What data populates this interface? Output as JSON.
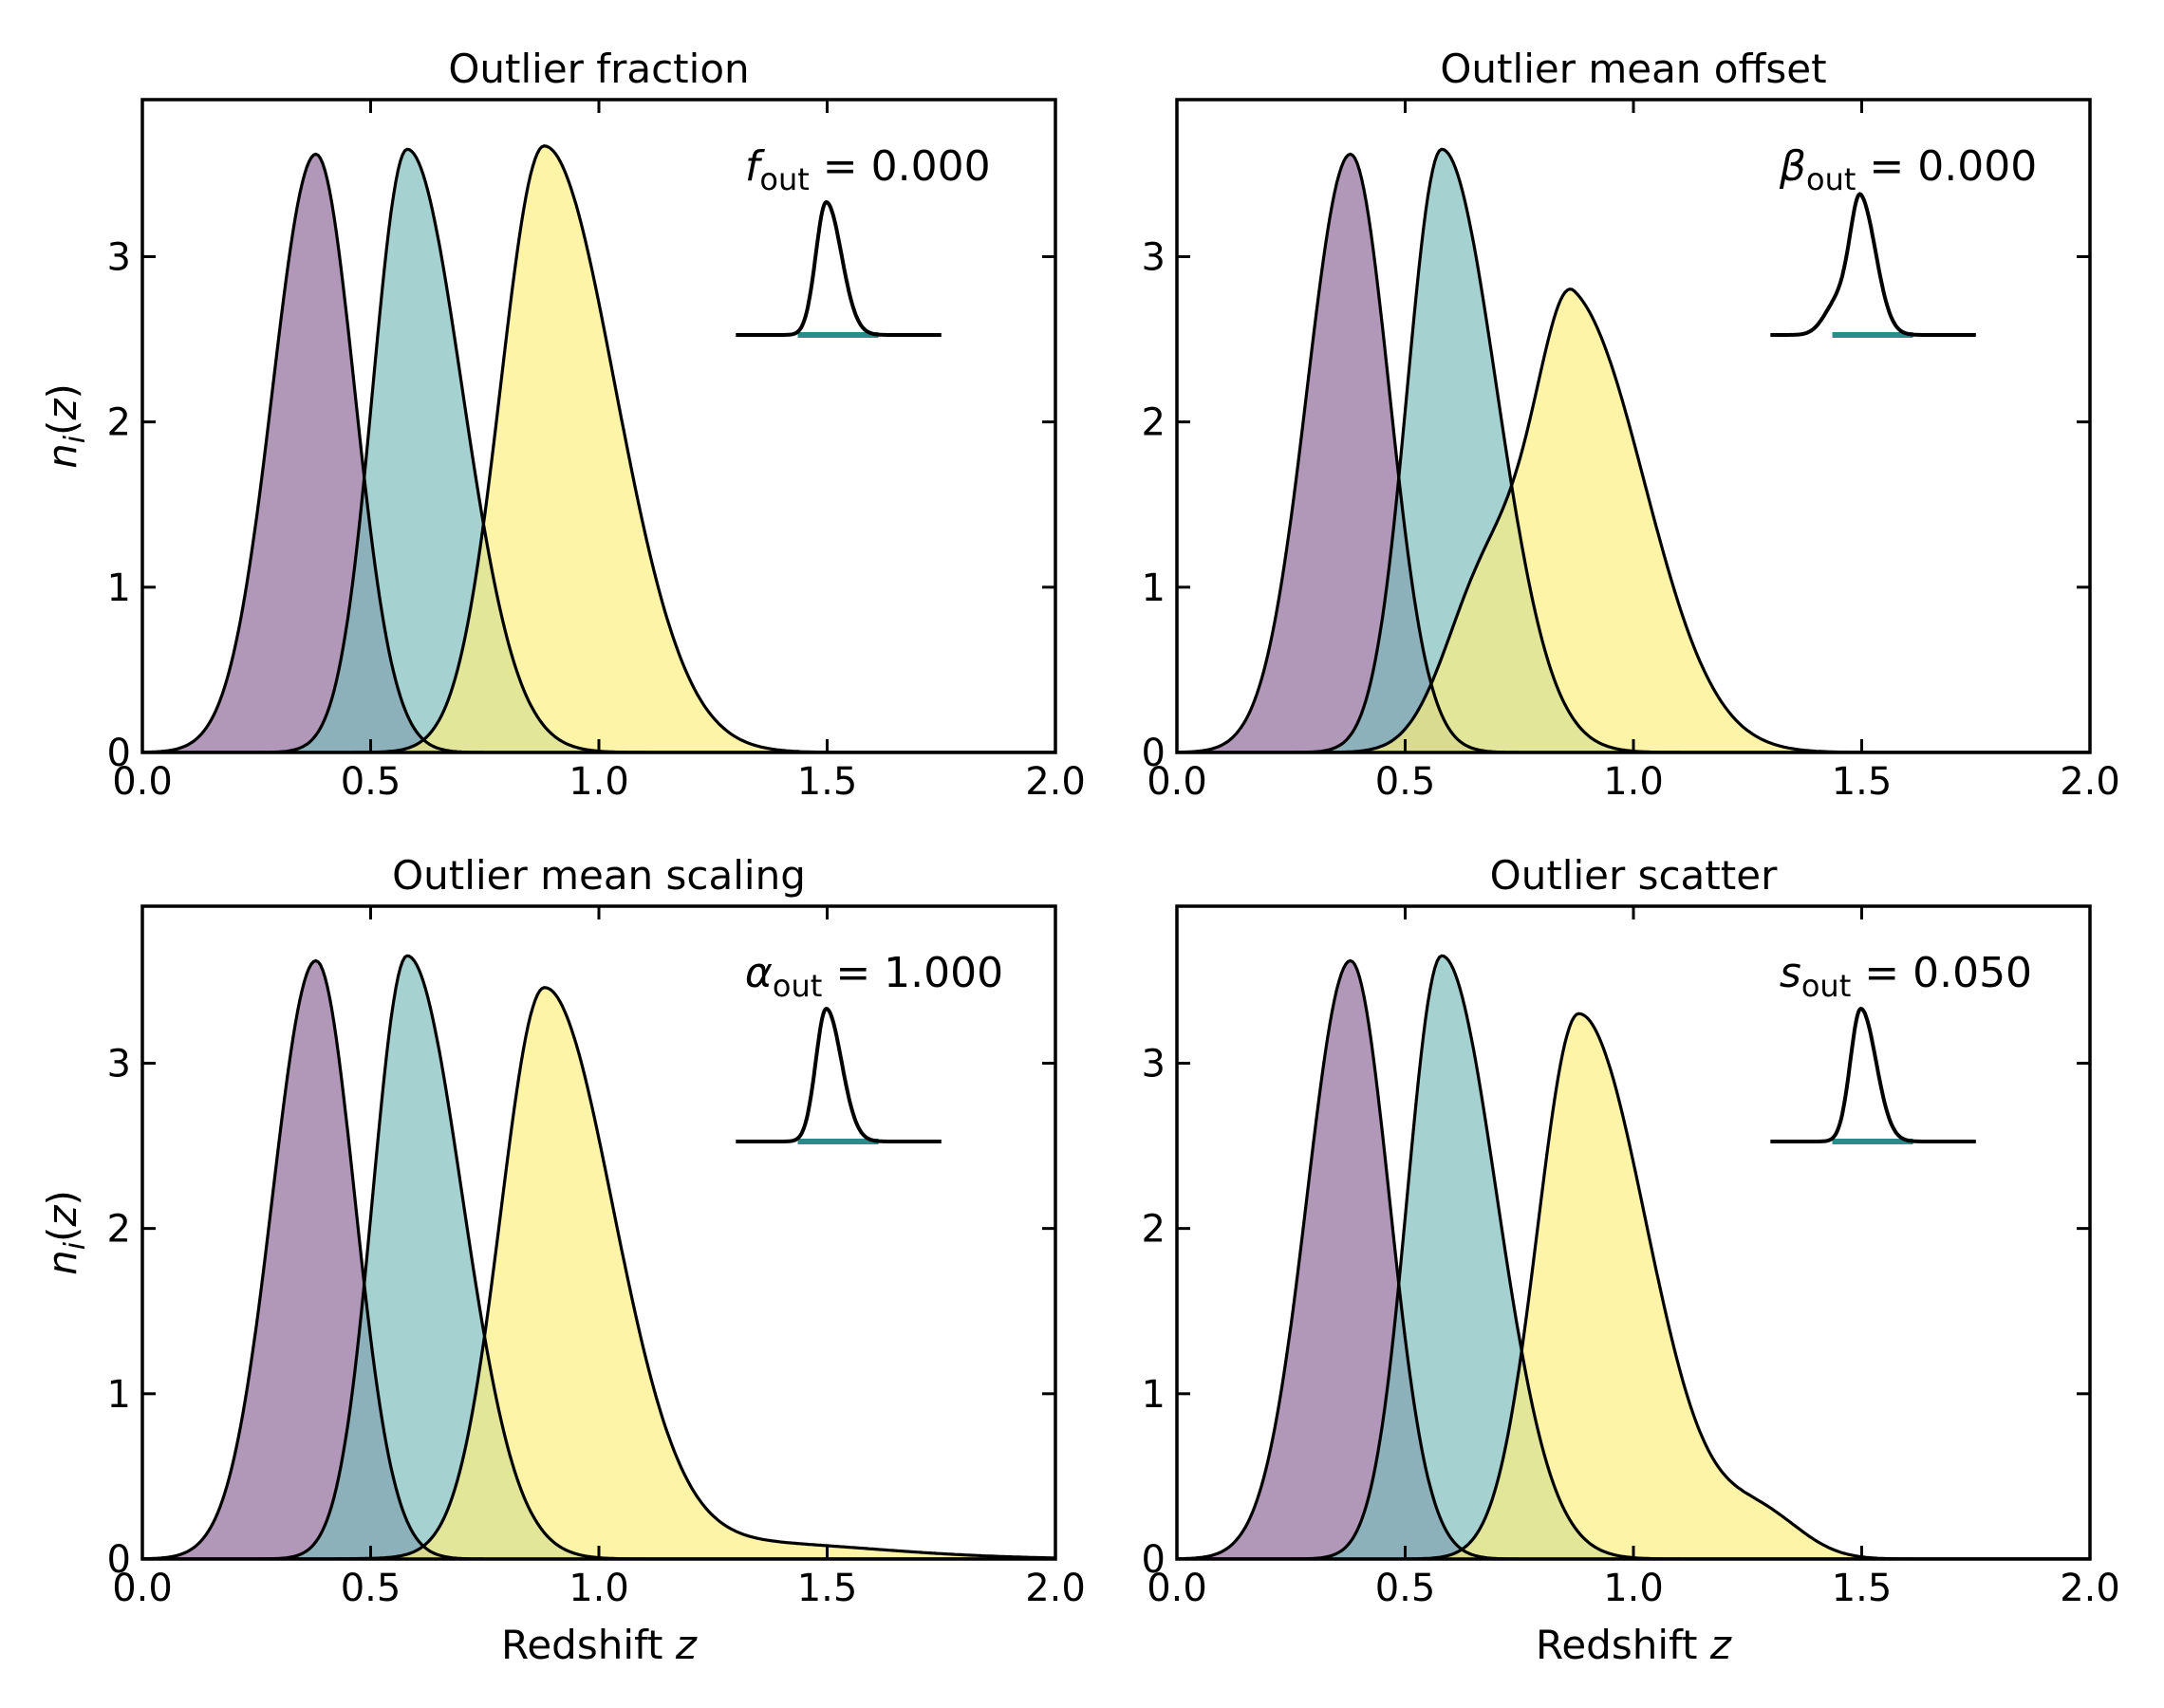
{
  "colors": {
    "purple": "#8e6796",
    "teal": "#7bbdbb",
    "yellow": "#fdef7e",
    "outline": "#000000",
    "inset_base": "#2a8c8a"
  },
  "chart_data": [
    {
      "type": "area",
      "title": "Outlier fraction",
      "xlabel": "",
      "ylabel": "n_i(z)",
      "xlim": [
        0,
        2
      ],
      "ylim": [
        0,
        3.95
      ],
      "xticks": [
        "0.0",
        "0.5",
        "1.0",
        "1.5",
        "2.0"
      ],
      "yticks": [
        "0",
        "1",
        "2",
        "3"
      ],
      "annotation": {
        "symbol": "f",
        "sub": "out",
        "text": " = 0.000"
      },
      "inset_peak_x": 1.5,
      "inset_tail": false,
      "series": [
        {
          "color": "purple",
          "peak": 3.62,
          "mu": 0.38,
          "sl": 0.095,
          "sr": 0.085,
          "outlier": 0,
          "om": 0,
          "os": 0.1
        },
        {
          "color": "teal",
          "peak": 3.65,
          "mu": 0.58,
          "sl": 0.075,
          "sr": 0.12,
          "outlier": 0,
          "om": 0,
          "os": 0.1
        },
        {
          "color": "yellow",
          "peak": 3.67,
          "mu": 0.88,
          "sl": 0.095,
          "sr": 0.155,
          "outlier": 0,
          "om": 0,
          "os": 0.1
        }
      ]
    },
    {
      "type": "area",
      "title": "Outlier mean offset",
      "xlabel": "",
      "ylabel": "",
      "xlim": [
        0,
        2
      ],
      "ylim": [
        0,
        3.95
      ],
      "xticks": [
        "0.0",
        "0.5",
        "1.0",
        "1.5",
        "2.0"
      ],
      "yticks": [
        "0",
        "1",
        "2",
        "3"
      ],
      "annotation": {
        "symbol": "β",
        "sub": "out",
        "text": " = 0.000"
      },
      "inset_peak_x": 1.5,
      "inset_tail": true,
      "series": [
        {
          "color": "purple",
          "peak": 3.62,
          "mu": 0.38,
          "sl": 0.095,
          "sr": 0.085,
          "outlier": 0,
          "om": 0,
          "os": 0.1
        },
        {
          "color": "teal",
          "peak": 3.65,
          "mu": 0.58,
          "sl": 0.075,
          "sr": 0.12,
          "outlier": 0,
          "om": 0,
          "os": 0.1
        },
        {
          "color": "yellow",
          "peak": 2.68,
          "mu": 0.87,
          "sl": 0.085,
          "sr": 0.155,
          "outlier": 1.05,
          "om": 0.68,
          "os": 0.09
        }
      ]
    },
    {
      "type": "area",
      "title": "Outlier mean scaling",
      "xlabel": "Redshift z",
      "ylabel": "n_i(z)",
      "xlim": [
        0,
        2
      ],
      "ylim": [
        0,
        3.95
      ],
      "xticks": [
        "0.0",
        "0.5",
        "1.0",
        "1.5",
        "2.0"
      ],
      "yticks": [
        "0",
        "1",
        "2",
        "3"
      ],
      "annotation": {
        "symbol": "α",
        "sub": "out",
        "text": " = 1.000"
      },
      "inset_peak_x": 1.5,
      "inset_tail": false,
      "series": [
        {
          "color": "purple",
          "peak": 3.62,
          "mu": 0.38,
          "sl": 0.095,
          "sr": 0.085,
          "outlier": 0,
          "om": 0,
          "os": 0.1
        },
        {
          "color": "teal",
          "peak": 3.65,
          "mu": 0.58,
          "sl": 0.075,
          "sr": 0.12,
          "outlier": 0,
          "om": 0,
          "os": 0.1
        },
        {
          "color": "yellow",
          "peak": 3.42,
          "mu": 0.88,
          "sl": 0.095,
          "sr": 0.15,
          "outlier": 0.1,
          "om": 1.3,
          "os": 0.3
        }
      ]
    },
    {
      "type": "area",
      "title": "Outlier scatter",
      "xlabel": "Redshift z",
      "ylabel": "",
      "xlim": [
        0,
        2
      ],
      "ylim": [
        0,
        3.95
      ],
      "xticks": [
        "0.0",
        "0.5",
        "1.0",
        "1.5",
        "2.0"
      ],
      "yticks": [
        "0",
        "1",
        "2",
        "3"
      ],
      "annotation": {
        "symbol": "s",
        "sub": "out",
        "text": " = 0.050"
      },
      "inset_peak_x": 1.5,
      "inset_tail": false,
      "series": [
        {
          "color": "purple",
          "peak": 3.62,
          "mu": 0.38,
          "sl": 0.095,
          "sr": 0.085,
          "outlier": 0,
          "om": 0,
          "os": 0.1
        },
        {
          "color": "teal",
          "peak": 3.65,
          "mu": 0.58,
          "sl": 0.075,
          "sr": 0.12,
          "outlier": 0,
          "om": 0,
          "os": 0.1
        },
        {
          "color": "yellow",
          "peak": 3.3,
          "mu": 0.88,
          "sl": 0.09,
          "sr": 0.15,
          "outlier": 0.25,
          "om": 1.28,
          "os": 0.09
        }
      ]
    }
  ]
}
